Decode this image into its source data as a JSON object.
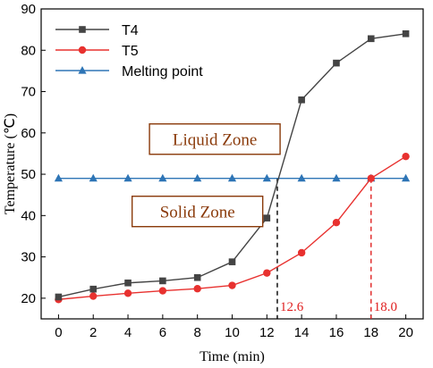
{
  "chart_data": {
    "type": "line",
    "xlabel": "Time (min)",
    "ylabel": "Temperature (℃)",
    "xlim": [
      -1,
      21
    ],
    "ylim": [
      15,
      90
    ],
    "x_ticks": [
      0,
      2,
      4,
      6,
      8,
      10,
      12,
      14,
      16,
      18,
      20
    ],
    "y_ticks": [
      20,
      30,
      40,
      50,
      60,
      70,
      80,
      90
    ],
    "x": [
      0,
      2,
      4,
      6,
      8,
      10,
      12,
      14,
      16,
      18,
      20
    ],
    "series": [
      {
        "name": "T4",
        "color": "#444444",
        "marker": "square",
        "values": [
          20.3,
          22.2,
          23.7,
          24.2,
          25.0,
          28.8,
          39.4,
          68.0,
          76.9,
          82.8,
          84.0
        ]
      },
      {
        "name": "T5",
        "color": "#e8312f",
        "marker": "circle",
        "values": [
          19.7,
          20.5,
          21.2,
          21.8,
          22.3,
          23.1,
          26.1,
          31.0,
          38.3,
          49.0,
          54.3
        ]
      },
      {
        "name": "Melting point",
        "color": "#2e75b6",
        "marker": "triangle",
        "values": [
          49,
          49,
          49,
          49,
          49,
          49,
          49,
          49,
          49,
          49,
          49
        ]
      }
    ],
    "legend_position": "top-left",
    "grid": false,
    "annotations": [
      {
        "text": "Liquid Zone",
        "x": 9.0,
        "y": 58.5
      },
      {
        "text": "Solid Zone",
        "x": 8.0,
        "y": 41.0
      }
    ],
    "vertical_markers": [
      {
        "x": 12.6,
        "label": "12.6",
        "color": "#000000"
      },
      {
        "x": 18.0,
        "label": "18.0",
        "color": "#e02020"
      }
    ]
  }
}
